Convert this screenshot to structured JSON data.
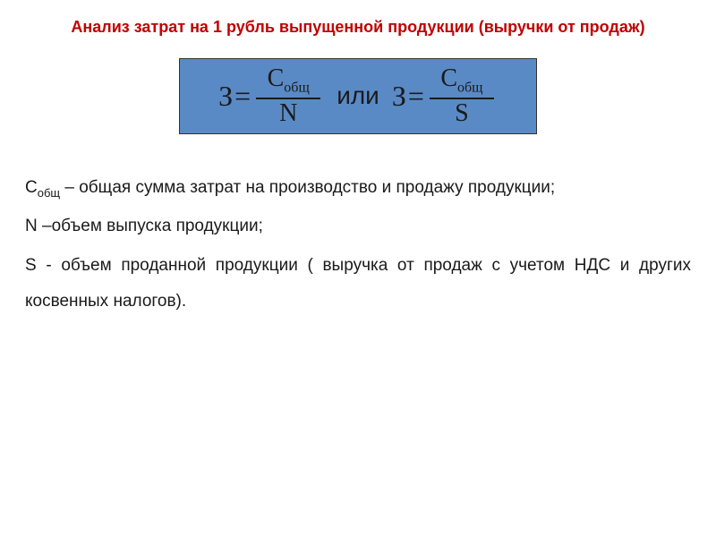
{
  "title": "Анализ затрат на 1 рубль выпущенной продукции (выручки от продаж)",
  "formula": {
    "box_background": "#5a8ac6",
    "box_border": "#333333",
    "text_color": "#1a1a1a",
    "z_symbol": "З",
    "eq": "=",
    "numerator_main": "С",
    "numerator_sub": "общ",
    "denom1": "N",
    "denom2": "S",
    "or_word": "или",
    "font_family": "Times New Roman",
    "z_fontsize": 32,
    "frac_fontsize": 28,
    "sub_fontsize": 16
  },
  "definitions": {
    "c_main": "С",
    "c_sub": "общ",
    "c_rest": " – общая сумма затрат на производство и продажу продукции;",
    "n_line": "N –объем выпуска продукции;",
    "s_line": "S - объем проданной продукции ( выручка от продаж с учетом НДС и других косвенных налогов).",
    "font_size": 19,
    "text_color": "#1a1a1a"
  },
  "title_color": "#c00000",
  "title_fontsize": 18,
  "background": "#ffffff"
}
